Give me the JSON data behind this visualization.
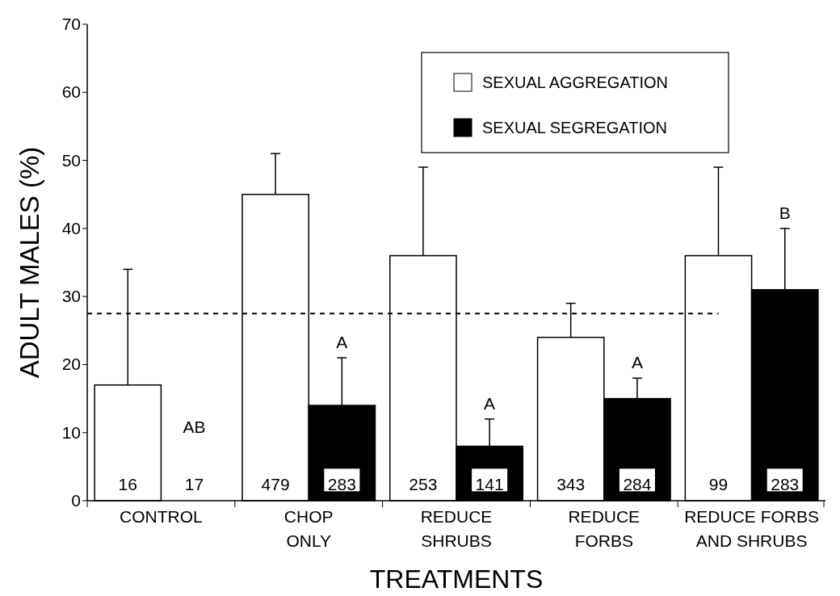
{
  "chart_data": {
    "type": "bar",
    "xlabel": "TREATMENTS",
    "ylabel": "ADULT MALES (%)",
    "categories": [
      "CONTROL",
      "CHOP ONLY",
      "REDUCE SHRUBS",
      "REDUCE FORBS",
      "REDUCE FORBS AND SHRUBS"
    ],
    "series": [
      {
        "name": "SEXUAL AGGREGATION",
        "color": "#ffffff",
        "values": [
          17,
          45,
          36,
          24,
          36
        ],
        "errors": [
          [
            17,
            34
          ],
          [
            45,
            51
          ],
          [
            36,
            49
          ],
          [
            24,
            29
          ],
          [
            36,
            49
          ]
        ]
      },
      {
        "name": "SEXUAL SEGREGATION",
        "color": "#000000",
        "values": [
          0,
          14,
          8,
          15,
          31
        ],
        "errors": [
          null,
          [
            14,
            21
          ],
          [
            8,
            12
          ],
          [
            15,
            18
          ],
          [
            31,
            40
          ]
        ]
      }
    ],
    "ylim": [
      0,
      70
    ],
    "yticks": [
      0,
      10,
      20,
      30,
      40,
      50,
      60,
      70
    ],
    "ref_lines": [
      {
        "axis": "y",
        "value": 27.5,
        "line_style": "dashed"
      }
    ],
    "annotations": [
      {
        "text": "16",
        "x": "CONTROL",
        "y": 1.5
      },
      {
        "text": "17",
        "x": "CONTROL",
        "y": 1.5
      },
      {
        "text": "479",
        "x": "CHOP ONLY",
        "y": 1.5
      },
      {
        "text": "283",
        "x": "CHOP ONLY",
        "y": 1.5
      },
      {
        "text": "253",
        "x": "REDUCE SHRUBS",
        "y": 1.5
      },
      {
        "text": "141",
        "x": "REDUCE SHRUBS",
        "y": 1.5
      },
      {
        "text": "343",
        "x": "REDUCE FORBS",
        "y": 1.5
      },
      {
        "text": "284",
        "x": "REDUCE FORBS",
        "y": 1.5
      },
      {
        "text": "99",
        "x": "REDUCE FORBS AND SHRUBS",
        "y": 1.5
      },
      {
        "text": "283",
        "x": "REDUCE FORBS AND SHRUBS",
        "y": 1.5
      },
      {
        "text": "AB",
        "x": "CONTROL",
        "y": 10
      },
      {
        "text": "A",
        "x": "CHOP ONLY",
        "y": 21
      },
      {
        "text": "A",
        "x": "REDUCE SHRUBS",
        "y": 12
      },
      {
        "text": "A",
        "x": "REDUCE FORBS",
        "y": 18
      },
      "B"
    ],
    "legend": "top right",
    "grid": false
  }
}
